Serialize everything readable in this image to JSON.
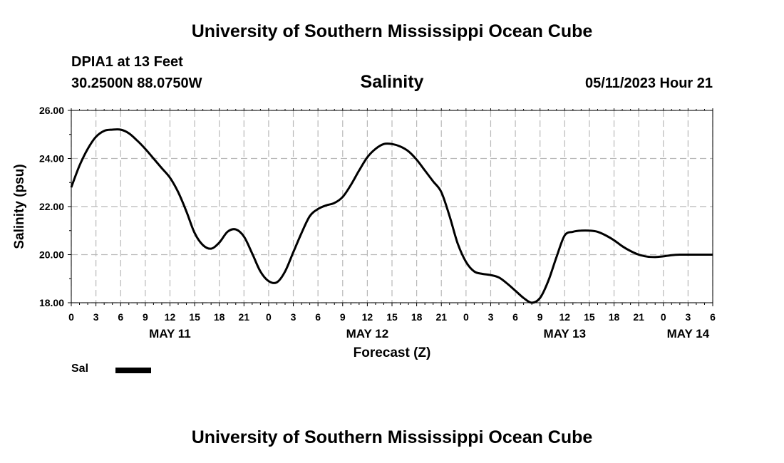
{
  "header": {
    "title_top": "University of Southern Mississippi Ocean Cube",
    "title_bottom": "University of Southern Mississippi Ocean Cube",
    "station": "DPIA1 at 13 Feet",
    "location": "30.2500N  88.0750W",
    "parameter": "Salinity",
    "timestamp": "05/11/2023 Hour 21"
  },
  "legend": {
    "label": "Sal"
  },
  "chart_data": {
    "type": "line",
    "title": "Salinity",
    "xlabel": "Forecast (Z)",
    "ylabel": "Salinity (psu)",
    "ylim": [
      18,
      26
    ],
    "yticks": [
      "18.00",
      "20.00",
      "22.00",
      "24.00",
      "26.00"
    ],
    "xlim": [
      0,
      78
    ],
    "xtick_hours": [
      0,
      3,
      6,
      9,
      12,
      15,
      18,
      21,
      24,
      27,
      30,
      33,
      36,
      39,
      42,
      45,
      48,
      51,
      54,
      57,
      60,
      63,
      66,
      69,
      72,
      75,
      78
    ],
    "xtick_labels": [
      "0",
      "3",
      "6",
      "9",
      "12",
      "15",
      "18",
      "21",
      "0",
      "3",
      "6",
      "9",
      "12",
      "15",
      "18",
      "21",
      "0",
      "3",
      "6",
      "9",
      "12",
      "15",
      "18",
      "21",
      "0",
      "3",
      "6"
    ],
    "date_labels": [
      {
        "hour": 12,
        "label": "MAY 11"
      },
      {
        "hour": 36,
        "label": "MAY 12"
      },
      {
        "hour": 60,
        "label": "MAY 13"
      },
      {
        "hour": 75,
        "label": "MAY 14"
      }
    ],
    "grid": true,
    "series": [
      {
        "name": "Sal",
        "color": "#000000",
        "x": [
          0,
          1,
          2,
          3,
          4,
          5,
          6,
          7,
          8,
          9,
          10,
          11,
          12,
          13,
          14,
          15,
          16,
          17,
          18,
          19,
          20,
          21,
          22,
          23,
          24,
          25,
          26,
          27,
          28,
          29,
          30,
          31,
          32,
          33,
          34,
          35,
          36,
          37,
          38,
          39,
          40,
          41,
          42,
          43,
          44,
          45,
          46,
          47,
          48,
          49,
          50,
          51,
          52,
          53,
          54,
          55,
          56,
          57,
          58,
          59,
          60,
          61,
          62,
          63,
          64,
          65,
          66,
          67,
          68,
          69,
          70,
          71,
          72,
          73,
          74,
          75,
          76,
          77,
          78
        ],
        "values": [
          22.8,
          23.7,
          24.4,
          24.9,
          25.15,
          25.2,
          25.2,
          25.05,
          24.75,
          24.4,
          24.0,
          23.6,
          23.2,
          22.6,
          21.8,
          20.9,
          20.4,
          20.25,
          20.5,
          20.95,
          21.05,
          20.75,
          20.05,
          19.3,
          18.9,
          18.85,
          19.3,
          20.1,
          20.9,
          21.6,
          21.9,
          22.05,
          22.15,
          22.4,
          22.9,
          23.5,
          24.05,
          24.4,
          24.6,
          24.6,
          24.5,
          24.3,
          23.95,
          23.5,
          23.05,
          22.6,
          21.6,
          20.45,
          19.7,
          19.3,
          19.2,
          19.15,
          19.05,
          18.8,
          18.5,
          18.2,
          18.0,
          18.2,
          18.9,
          19.9,
          20.8,
          20.95,
          21.0,
          21.0,
          20.95,
          20.8,
          20.6,
          20.35,
          20.15,
          20.0,
          19.92,
          19.9,
          19.93,
          19.98,
          20.0,
          20.0,
          20.0,
          20.0,
          20.0
        ]
      }
    ]
  }
}
